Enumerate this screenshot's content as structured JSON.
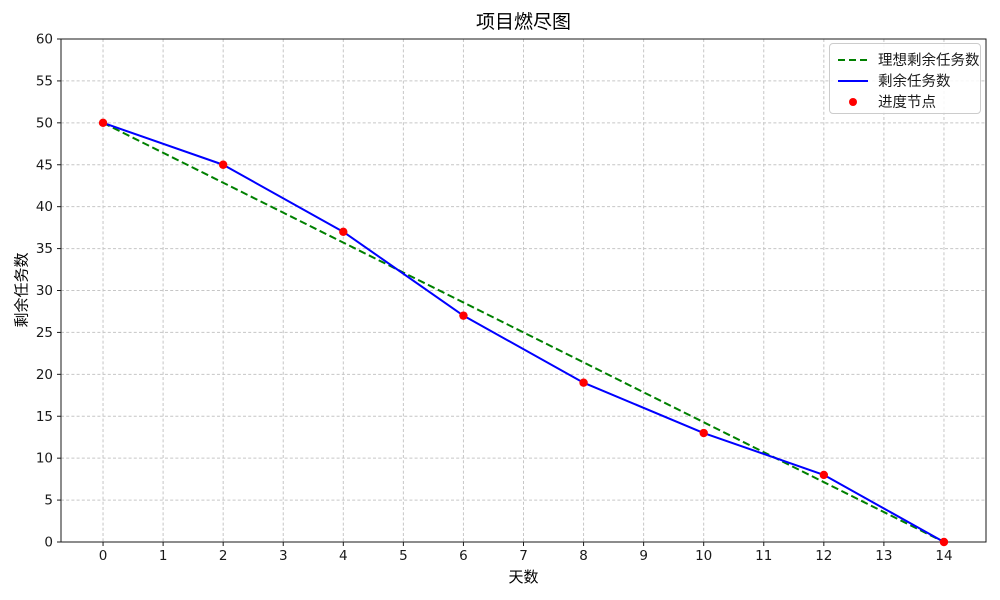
{
  "chart_data": {
    "type": "line",
    "title": "项目燃尽图",
    "xlabel": "天数",
    "ylabel": "剩余任务数",
    "xlim": [
      -0.7,
      14.7
    ],
    "ylim": [
      0,
      60
    ],
    "xticks": [
      0,
      1,
      2,
      3,
      4,
      5,
      6,
      7,
      8,
      9,
      10,
      11,
      12,
      13,
      14
    ],
    "yticks": [
      0,
      5,
      10,
      15,
      20,
      25,
      30,
      35,
      40,
      45,
      50,
      55,
      60
    ],
    "grid": true,
    "legend_position": "top-right",
    "series": [
      {
        "name": "理想剩余任务数",
        "style": "dashed",
        "color": "#008000",
        "x": [
          0,
          14
        ],
        "values": [
          50,
          0
        ]
      },
      {
        "name": "剩余任务数",
        "style": "solid",
        "color": "#0000ff",
        "x": [
          0,
          2,
          4,
          6,
          8,
          10,
          12,
          14
        ],
        "values": [
          50,
          45,
          37,
          27,
          19,
          13,
          8,
          0
        ]
      },
      {
        "name": "进度节点",
        "style": "scatter",
        "color": "#ff0000",
        "x": [
          0,
          2,
          4,
          6,
          8,
          10,
          12,
          14
        ],
        "values": [
          50,
          45,
          37,
          27,
          19,
          13,
          8,
          0
        ]
      }
    ],
    "colors": {
      "grid": "#c6c6c6",
      "spine": "#1a1a1a",
      "tick_text": "#1a1a1a",
      "background": "#ffffff"
    }
  }
}
